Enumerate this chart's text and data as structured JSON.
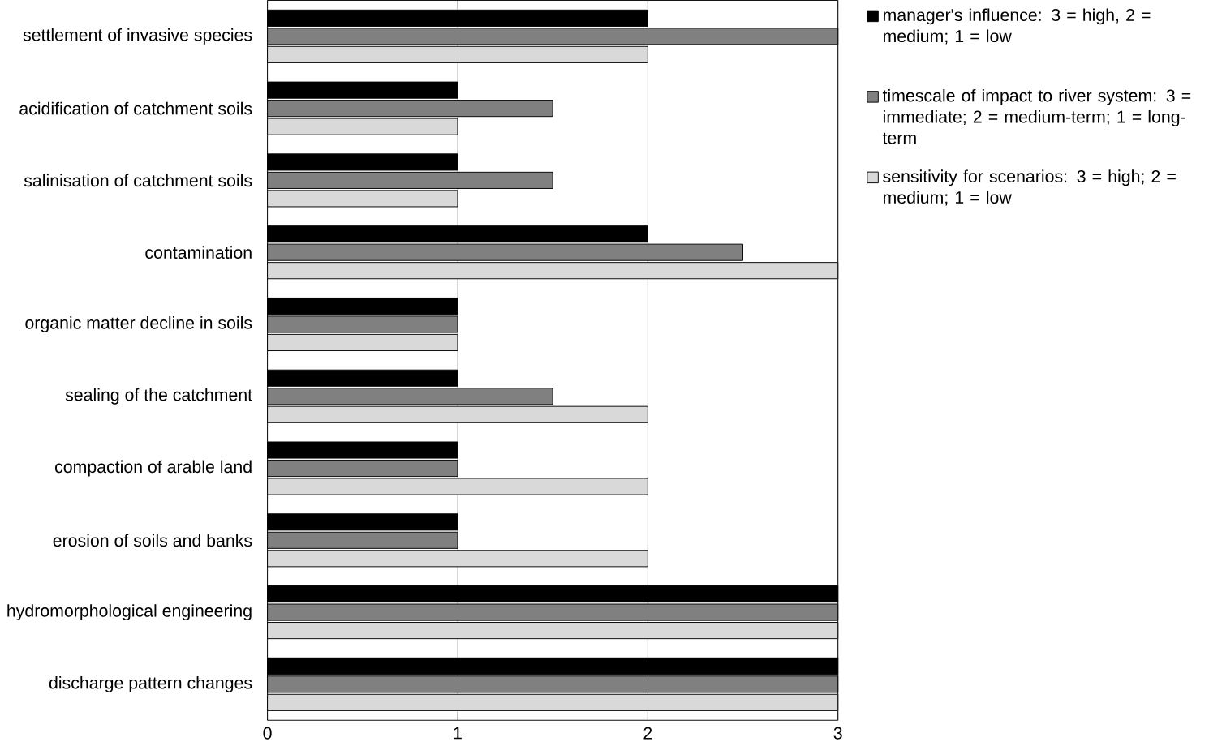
{
  "chart_data": {
    "type": "bar",
    "orientation": "horizontal",
    "categories": [
      "settlement of invasive species",
      "acidification of catchment soils",
      "salinisation of catchment soils",
      "contamination",
      "organic matter decline in soils",
      "sealing of the catchment",
      "compaction of arable land",
      "erosion of soils and banks",
      "hydromorphological engineering",
      "discharge pattern changes"
    ],
    "series": [
      {
        "name": "manager's influence: 3 = high, 2 = medium; 1 = low",
        "color": "#000000",
        "values": [
          2,
          1,
          1,
          2,
          1,
          1,
          1,
          1,
          3,
          3
        ]
      },
      {
        "name": "timescale of impact to river system: 3 = immediate; 2 = medium-term; 1 = long-term",
        "color": "#808080",
        "values": [
          3,
          1.5,
          1.5,
          2.5,
          1,
          1.5,
          1,
          1,
          3,
          3
        ]
      },
      {
        "name": "sensitivity for scenarios: 3 = high; 2 = medium; 1 = low",
        "color": "#d9d9d9",
        "values": [
          2,
          1,
          1,
          3,
          1,
          2,
          2,
          2,
          3,
          3
        ]
      }
    ],
    "xlim": [
      0,
      3
    ],
    "xticks": [
      0,
      1,
      2,
      3
    ],
    "grid": "x",
    "legend": "right"
  }
}
